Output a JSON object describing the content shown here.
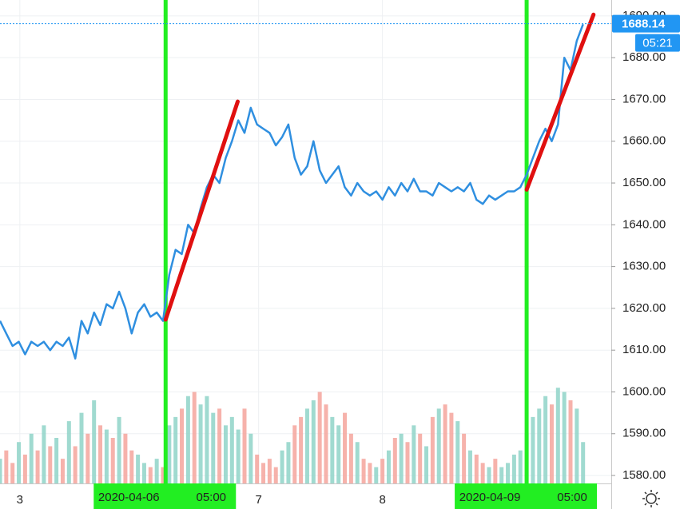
{
  "chart_data": {
    "type": "line",
    "x": [
      0,
      1.2,
      2.4,
      3.6,
      4.8,
      6,
      7.2,
      8.4,
      9.6,
      10.8,
      12,
      13.2,
      14.4,
      15.6,
      16.8,
      18,
      19.2,
      20.4,
      21.6,
      22.8,
      24,
      25.2,
      26.4,
      27.6,
      28.8,
      30,
      31.2,
      32.4,
      33.6,
      34.8,
      36,
      37.2,
      38.4,
      39.6,
      40.8,
      42,
      43.2,
      44.4,
      45.6,
      46.8,
      48,
      49.2,
      50.4,
      51.6,
      52.8,
      54,
      55.2,
      56.4,
      57.6,
      58.8,
      60,
      61.2,
      62.4,
      63.6,
      64.8,
      66,
      67.2,
      68.4,
      69.6,
      70.8,
      72,
      73.2,
      74.4,
      75.6,
      76.8,
      78,
      79.2,
      80.4,
      81.6,
      82.8,
      84,
      85.2,
      86.4,
      87.6,
      88.8,
      90,
      91.2,
      92.4,
      93.6,
      94.8,
      96,
      97.2,
      98.4,
      99.6,
      100.8,
      102,
      103.2,
      104.4,
      105.6,
      106.8,
      108,
      109.2,
      110.4,
      111.6
    ],
    "series": [
      {
        "color": "#2f8fe0",
        "values": [
          1617,
          1614,
          1611,
          1612,
          1609,
          1612,
          1611,
          1612,
          1610,
          1612,
          1611,
          1613,
          1608,
          1617,
          1614,
          1619,
          1616,
          1621,
          1620,
          1624,
          1620,
          1614,
          1619,
          1621,
          1618,
          1619,
          1617,
          1628,
          1634,
          1633,
          1640,
          1638,
          1644,
          1649,
          1652,
          1650,
          1656,
          1660,
          1665,
          1662,
          1668,
          1664,
          1663,
          1662,
          1659,
          1661,
          1664,
          1656,
          1652,
          1654,
          1660,
          1653,
          1650,
          1652,
          1654,
          1649,
          1647,
          1650,
          1648,
          1647,
          1648,
          1646,
          1649,
          1647,
          1650,
          1648,
          1651,
          1648,
          1648,
          1647,
          1650,
          1649,
          1648,
          1649,
          1648,
          1650,
          1646,
          1645,
          1647,
          1646,
          1647,
          1648,
          1648,
          1649,
          1652,
          1656,
          1660,
          1663,
          1660,
          1664,
          1680,
          1677,
          1684,
          1688
        ]
      }
    ],
    "volume": {
      "up_color": "#8fd3c8",
      "down_color": "#f4a49c",
      "values": [
        1584,
        1586,
        1583,
        1588,
        1585,
        1590,
        1586,
        1592,
        1587,
        1589,
        1584,
        1593,
        1587,
        1595,
        1590,
        1598,
        1592,
        1591,
        1589,
        1594,
        1590,
        1586,
        1585,
        1583,
        1582,
        1584,
        1582,
        1592,
        1594,
        1596,
        1599,
        1600,
        1597,
        1599,
        1595,
        1596,
        1592,
        1594,
        1591,
        1596,
        1590,
        1585,
        1583,
        1584,
        1582,
        1586,
        1588,
        1592,
        1594,
        1596,
        1598,
        1600,
        1597,
        1594,
        1592,
        1595,
        1590,
        1588,
        1584,
        1583,
        1582,
        1584,
        1586,
        1589,
        1590,
        1588,
        1592,
        1590,
        1587,
        1594,
        1596,
        1597,
        1595,
        1593,
        1590,
        1586,
        1585,
        1583,
        1582,
        1584,
        1582,
        1583,
        1585,
        1586,
        1590,
        1594,
        1596,
        1599,
        1597,
        1601,
        1600,
        1598,
        1596,
        1588
      ]
    },
    "xlim": [
      0,
      117
    ],
    "xticks": [
      {
        "value": 3.8,
        "label": "3"
      },
      {
        "value": 49.5,
        "label": "7"
      },
      {
        "value": 73.2,
        "label": "8"
      }
    ],
    "ylim": [
      1578.1,
      1693.8
    ],
    "yticks": [
      {
        "value": 1580,
        "label": "1580.00"
      },
      {
        "value": 1590,
        "label": "1590.00"
      },
      {
        "value": 1600,
        "label": "1600.00"
      },
      {
        "value": 1610,
        "label": "1610.00"
      },
      {
        "value": 1620,
        "label": "1620.00"
      },
      {
        "value": 1630,
        "label": "1630.00"
      },
      {
        "value": 1640,
        "label": "1640.00"
      },
      {
        "value": 1650,
        "label": "1650.00"
      },
      {
        "value": 1660,
        "label": "1660.00"
      },
      {
        "value": 1670,
        "label": "1670.00"
      },
      {
        "value": 1680,
        "label": "1680.00"
      },
      {
        "value": 1690,
        "label": "1690.00"
      }
    ],
    "grid": true,
    "last_price": 1688.14,
    "countdown": "05:21",
    "highlight_color": "#22ee22",
    "highlights": [
      {
        "x": 31.7,
        "date": "2020-04-06",
        "time": "05:00"
      },
      {
        "x": 100.8,
        "date": "2020-04-09",
        "time": "05:00"
      }
    ],
    "trend_color": "#e01010",
    "trend_lines": [
      {
        "x": [
          31.7,
          45.5
        ],
        "y": [
          1617.3,
          1669.5
        ]
      },
      {
        "x": [
          100.8,
          113.6
        ],
        "y": [
          1648.4,
          1690.3
        ]
      }
    ]
  }
}
